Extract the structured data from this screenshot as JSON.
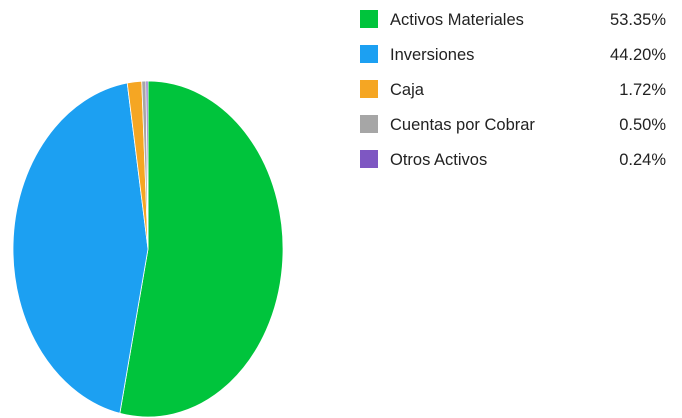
{
  "chart_data": {
    "type": "pie",
    "categories": [
      "Activos Materiales",
      "Inversiones",
      "Caja",
      "Cuentas por Cobrar",
      "Otros Activos"
    ],
    "values": [
      53.35,
      44.2,
      1.72,
      0.5,
      0.24
    ],
    "value_labels": [
      "53.35%",
      "44.20%",
      "1.72%",
      "0.50%",
      "0.24%"
    ],
    "colors": [
      "#00c43c",
      "#1ca0f2",
      "#f5a623",
      "#a6a6a6",
      "#7e57c2"
    ],
    "title": "",
    "legend_position": "right",
    "start_angle_deg": 0,
    "direction": "clockwise"
  }
}
